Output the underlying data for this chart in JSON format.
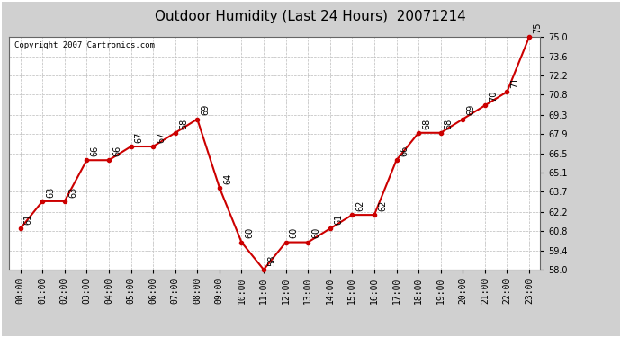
{
  "title": "Outdoor Humidity (Last 24 Hours)  20071214",
  "copyright": "Copyright 2007 Cartronics.com",
  "hours": [
    "00:00",
    "01:00",
    "02:00",
    "03:00",
    "04:00",
    "05:00",
    "06:00",
    "07:00",
    "08:00",
    "09:00",
    "10:00",
    "11:00",
    "12:00",
    "13:00",
    "14:00",
    "15:00",
    "16:00",
    "17:00",
    "18:00",
    "19:00",
    "20:00",
    "21:00",
    "22:00",
    "23:00"
  ],
  "ydata": [
    61,
    63,
    63,
    66,
    66,
    67,
    67,
    68,
    69,
    64,
    60,
    58,
    60,
    60,
    61,
    62,
    62,
    66,
    68,
    68,
    69,
    70,
    71,
    75
  ],
  "labels": [
    "61",
    "63",
    "63",
    "66",
    "66",
    "67",
    "67",
    "68",
    "69",
    "64",
    "60",
    "58",
    "60",
    "60",
    "61",
    "62",
    "62",
    "66",
    "68",
    "68",
    "69",
    "70",
    "71",
    "75"
  ],
  "ylim": [
    58.0,
    75.0
  ],
  "yticks": [
    58.0,
    59.4,
    60.8,
    62.2,
    63.7,
    65.1,
    66.5,
    67.9,
    69.3,
    70.8,
    72.2,
    73.6,
    75.0
  ],
  "ytick_labels": [
    "58.0",
    "59.4",
    "60.8",
    "62.2",
    "63.7",
    "65.1",
    "66.5",
    "67.9",
    "69.3",
    "70.8",
    "72.2",
    "73.6",
    "75.0"
  ],
  "line_color": "#cc0000",
  "outer_bg": "#d0d0d0",
  "plot_bg": "#ffffff",
  "grid_color": "#bbbbbb",
  "title_fontsize": 11,
  "tick_fontsize": 7,
  "label_fontsize": 7,
  "copyright_fontsize": 6.5
}
